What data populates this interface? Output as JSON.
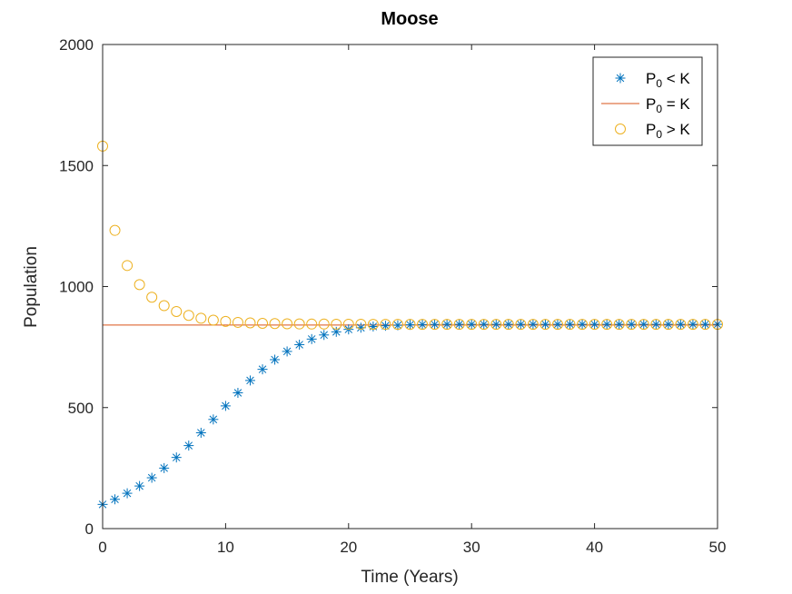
{
  "chart_data": {
    "type": "scatter",
    "title": "Moose",
    "xlabel": "Time (Years)",
    "ylabel": "Population",
    "xlim": [
      0,
      50
    ],
    "ylim": [
      0,
      2000
    ],
    "xticks": [
      "0",
      "10",
      "20",
      "30",
      "40",
      "50"
    ],
    "yticks": [
      "0",
      "500",
      "1000",
      "1500",
      "2000"
    ],
    "grid": false,
    "legend_position": "top-right",
    "colors": {
      "p_below": "#0072BD",
      "p_equal": "#D95319",
      "p_above": "#EDB120",
      "axis": "#262626"
    },
    "legend": [
      {
        "main": "P",
        "sub": "0",
        "rest": " < K",
        "marker": "asterisk"
      },
      {
        "main": "P",
        "sub": "0",
        "rest": " = K",
        "marker": "line"
      },
      {
        "main": "P",
        "sub": "0",
        "rest": " > K",
        "marker": "circle"
      }
    ],
    "series": [
      {
        "key": "below",
        "marker": "asterisk",
        "x_start": 0,
        "x_end": 50,
        "y": [
          100,
          121,
          146,
          176,
          210,
          250,
          294,
          343,
          396,
          451,
          507,
          561,
          612,
          658,
          698,
          732,
          760,
          783,
          800,
          813,
          823,
          830,
          835,
          838,
          840,
          842,
          843,
          843.5,
          844,
          844,
          844,
          844,
          844,
          844,
          844,
          844,
          844,
          844,
          844,
          844,
          844,
          844,
          844,
          844,
          844,
          844,
          844,
          844,
          844,
          844,
          844
        ]
      },
      {
        "key": "equal",
        "marker": "line",
        "x": [
          0,
          50
        ],
        "y": [
          841,
          841
        ]
      },
      {
        "key": "above",
        "marker": "circle",
        "x_start": 0,
        "x_end": 50,
        "y": [
          1580,
          1232,
          1087,
          1008,
          956,
          921,
          897,
          881,
          869,
          861,
          856,
          852,
          850,
          848,
          847,
          846,
          845.5,
          845,
          845,
          844.5,
          844.5,
          844.5,
          844,
          844,
          844,
          844,
          844,
          844,
          844,
          844,
          844,
          844,
          844,
          844,
          844,
          844,
          844,
          844,
          844,
          844,
          844,
          844,
          844,
          844,
          844,
          844,
          844,
          844,
          844,
          844,
          844
        ]
      }
    ]
  }
}
